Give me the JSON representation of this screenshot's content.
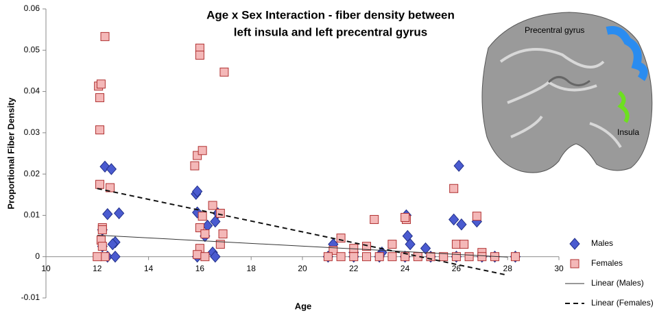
{
  "chart_data": {
    "type": "scatter",
    "title": [
      "Age x Sex Interaction - fiber density between",
      "left insula and left precentral gyrus"
    ],
    "x_label": "Age",
    "y_label": "Proportional Fiber Density",
    "xlim": [
      10,
      30
    ],
    "xticks": [
      10,
      12,
      14,
      16,
      18,
      20,
      22,
      24,
      26,
      28,
      30
    ],
    "ylim": [
      -0.01,
      0.06
    ],
    "yticks": [
      -0.01,
      0,
      0.01,
      0.02,
      0.03,
      0.04,
      0.05,
      0.06
    ],
    "grid": false,
    "legend": "right",
    "annotations": [
      {
        "text": "Precentral gyrus"
      },
      {
        "text": "Insula"
      }
    ],
    "series": [
      {
        "name": "Males",
        "kind": "points",
        "marker": "diamond",
        "color": "#4a5bd0",
        "x": [
          12.3,
          12.55,
          12.4,
          12.85,
          12.2,
          12.7,
          12.6,
          12.2,
          12.4,
          12.7,
          15.85,
          15.9,
          15.9,
          16.3,
          16.6,
          16.7,
          16.2,
          16.5,
          16.6,
          15.9,
          21.2,
          22,
          23.1,
          24.05,
          24.1,
          24.2,
          24.8,
          26.1,
          25.9,
          26.2,
          26.8,
          27.5,
          28.3,
          21,
          22,
          23,
          24,
          25,
          26,
          27
        ],
        "values": [
          0.0218,
          0.0212,
          0.0103,
          0.0105,
          0.0065,
          0.0035,
          0.003,
          0.0025,
          0,
          0,
          0.0152,
          0.0158,
          0.0107,
          0.0075,
          0.0085,
          0.0105,
          0.005,
          0.001,
          0,
          0,
          0.003,
          0.001,
          0.001,
          0.01,
          0.005,
          0.003,
          0.002,
          0.022,
          0.009,
          0.0078,
          0.0085,
          0,
          0,
          0,
          0,
          0,
          0,
          0,
          0,
          0
        ]
      },
      {
        "name": "Females",
        "kind": "points",
        "marker": "square",
        "color": "#f4b8b8",
        "x": [
          12.05,
          12.15,
          12.1,
          12.1,
          12.3,
          12.1,
          12.5,
          12.2,
          12.2,
          12.15,
          12.2,
          12.3,
          12,
          15.8,
          15.9,
          16.1,
          16,
          16,
          16.95,
          16.5,
          16.8,
          16.1,
          16,
          16.2,
          16.9,
          16.8,
          16,
          15.9,
          16.2,
          21.5,
          21.2,
          22,
          22.5,
          22.8,
          23.5,
          24.05,
          24,
          25.9,
          26,
          26.3,
          26.8,
          27,
          27.5,
          28.3,
          21,
          21.5,
          22,
          22.5,
          23,
          23.5,
          24,
          24.5,
          25,
          25.5,
          26,
          26.5,
          27
        ],
        "values": [
          0.0413,
          0.0418,
          0.0385,
          0.0307,
          0.0533,
          0.0175,
          0.0167,
          0.007,
          0.0065,
          0.004,
          0.0025,
          0,
          0,
          0.022,
          0.0245,
          0.0257,
          0.0505,
          0.0488,
          0.0447,
          0.0124,
          0.0105,
          0.0098,
          0.007,
          0.0055,
          0.0055,
          0.003,
          0.002,
          0.0005,
          0,
          0.0045,
          0.0015,
          0.002,
          0.0025,
          0.009,
          0.003,
          0.009,
          0.0095,
          0.0165,
          0.003,
          0.003,
          0.0098,
          0.001,
          0,
          0,
          0,
          0,
          0,
          0,
          0,
          0,
          0,
          0,
          0,
          0,
          0,
          0,
          0
        ]
      },
      {
        "name": "Linear (Males)",
        "kind": "line",
        "dash": false,
        "color": "#333333",
        "x": [
          12,
          28
        ],
        "values": [
          0.0052,
          -0.0001
        ]
      },
      {
        "name": "Linear (Females)",
        "kind": "line",
        "dash": true,
        "color": "#111111",
        "x": [
          12,
          28
        ],
        "values": [
          0.0165,
          -0.0045
        ]
      }
    ]
  }
}
